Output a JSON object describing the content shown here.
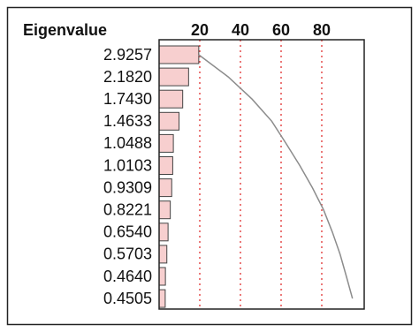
{
  "chart_data": {
    "type": "bar",
    "orientation": "horizontal",
    "column_title": "Eigenvalue",
    "values": [
      2.9257,
      2.182,
      1.743,
      1.4633,
      1.0488,
      1.0103,
      0.9309,
      0.8221,
      0.654,
      0.5703,
      0.464,
      0.4505
    ],
    "value_labels": [
      "2.9257",
      "2.1820",
      "1.7430",
      "1.4633",
      "1.0488",
      "1.0103",
      "0.9309",
      "0.8221",
      "0.6540",
      "0.5703",
      "0.4640",
      "0.4505"
    ],
    "percent": [
      19.5,
      14.5,
      11.6,
      9.8,
      7.0,
      6.7,
      6.2,
      5.5,
      4.4,
      3.8,
      3.1,
      3.0
    ],
    "cumulative_percent": [
      19.5,
      34.0,
      45.7,
      55.4,
      62.4,
      69.2,
      75.4,
      80.9,
      85.2,
      89.0,
      92.1,
      95.1
    ],
    "xlim": [
      0,
      100
    ],
    "xticks": [
      20,
      40,
      60,
      80
    ],
    "grid": true,
    "bar_color": "#f7cfcf",
    "line_color": "#8c8c8c",
    "grid_color": "#e03030"
  }
}
